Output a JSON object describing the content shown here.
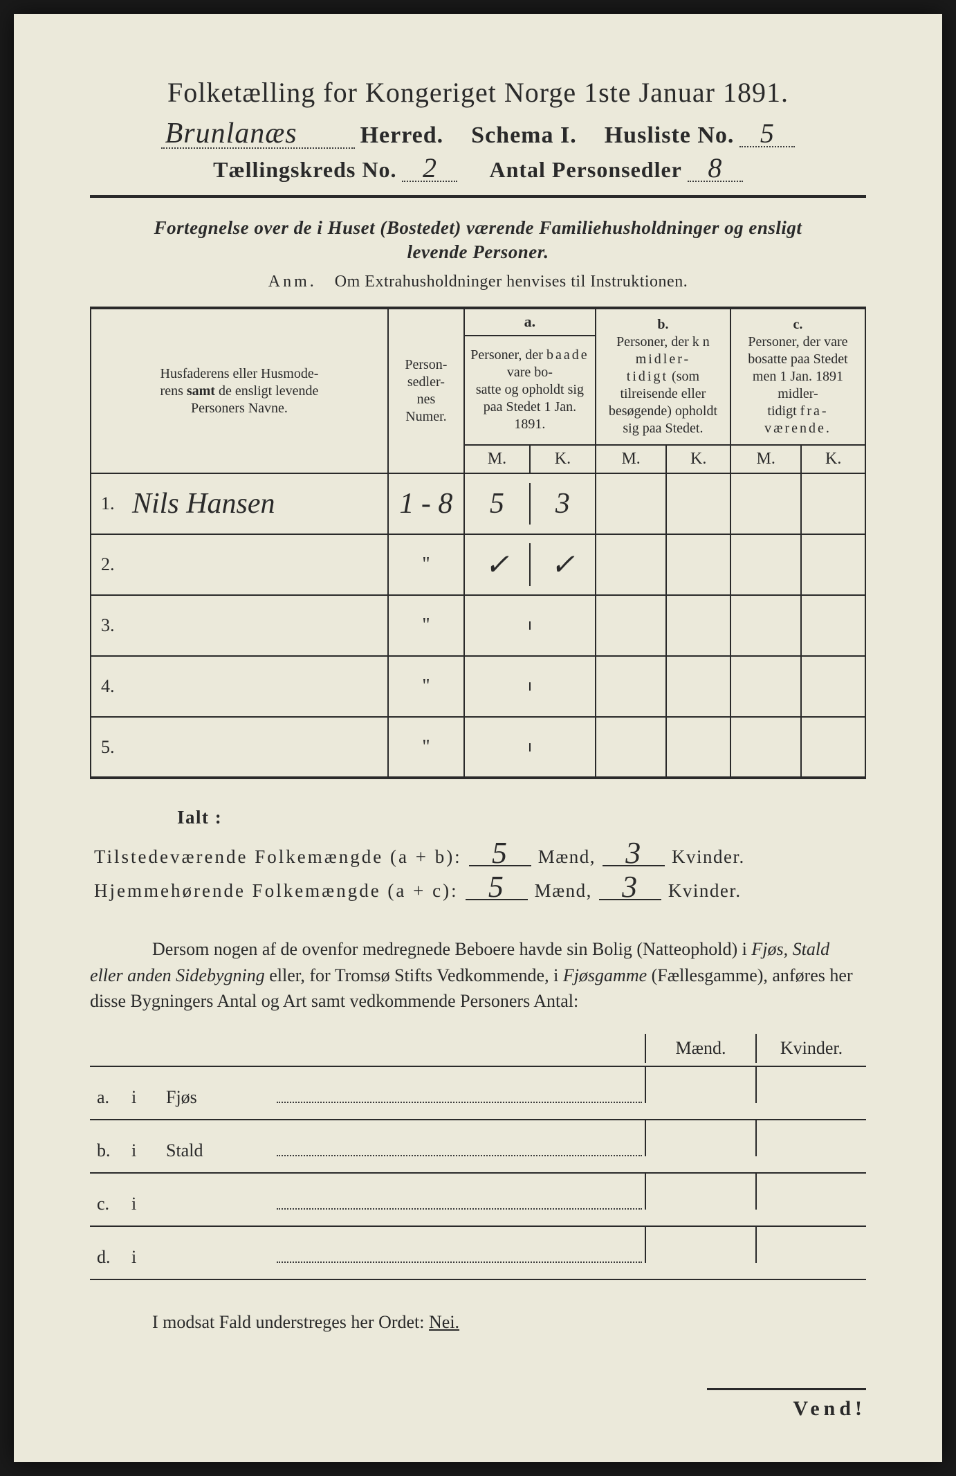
{
  "title": "Folketælling for Kongeriget Norge 1ste Januar 1891.",
  "header": {
    "herred_value": "Brunlanæs",
    "herred_label": "Herred.",
    "schema_label": "Schema I.",
    "husliste_label": "Husliste No.",
    "husliste_value": "5",
    "kreds_label": "Tællingskreds No.",
    "kreds_value": "2",
    "sedler_label": "Antal Personsedler",
    "sedler_value": "8"
  },
  "subtitle_line1": "Fortegnelse over de i Huset (Bostedet) værende Familiehusholdninger og ensligt",
  "subtitle_line2": "levende Personer.",
  "anm_label": "Anm.",
  "anm_text": "Om Extrahusholdninger henvises til Instruktionen.",
  "table": {
    "col_names": {
      "name": "Husfaderens eller Husmoderens samt de ensligt levende Personers Navne.",
      "numer": "Person-\nsedler-\nnes\nNumer.",
      "a_label": "a.",
      "a_text": "Personer, der baade vare bo-\nsatte og opholdt sig paa Stedet 1 Jan. 1891.",
      "b_label": "b.",
      "b_text": "Personer, der kn midler-\ntidigt (som tilreisende eller besøgende) opholdt sig paa Stedet.",
      "c_label": "c.",
      "c_text": "Personer, der vare bosatte paa Stedet men 1 Jan. 1891 midler-\ntidigt fra-\nværende.",
      "M": "M.",
      "K": "K."
    },
    "rows": [
      {
        "n": "1.",
        "name": "Nils Hansen",
        "numer": "1 - 8",
        "aM": "5",
        "aK": "3",
        "bM": "",
        "bK": "",
        "cM": "",
        "cK": ""
      },
      {
        "n": "2.",
        "name": "",
        "numer": "\"",
        "aM": "✓",
        "aK": "✓",
        "bM": "",
        "bK": "",
        "cM": "",
        "cK": ""
      },
      {
        "n": "3.",
        "name": "",
        "numer": "\"",
        "aM": "",
        "aK": "",
        "bM": "",
        "bK": "",
        "cM": "",
        "cK": ""
      },
      {
        "n": "4.",
        "name": "",
        "numer": "\"",
        "aM": "",
        "aK": "",
        "bM": "",
        "bK": "",
        "cM": "",
        "cK": ""
      },
      {
        "n": "5.",
        "name": "",
        "numer": "\"",
        "aM": "",
        "aK": "",
        "bM": "",
        "bK": "",
        "cM": "",
        "cK": ""
      }
    ]
  },
  "totals": {
    "ialt": "Ialt :",
    "tilstede_label": "Tilstedeværende Folkemængde (a + b):",
    "hjemme_label": "Hjemmehørende Folkemængde (a + c):",
    "maend": "Mænd,",
    "kvinder": "Kvinder.",
    "tilstede_m": "5",
    "tilstede_k": "3",
    "hjemme_m": "5",
    "hjemme_k": "3"
  },
  "paragraph": "Dersom nogen af de ovenfor medregnede Beboere havde sin Bolig (Natte­ophold) i Fjøs, Stald eller anden Sidebygning eller, for Tromsø Stifts Ved­kommende, i Fjøsgamme (Fællesgamme), anføres her disse Bygningers Antal og Art samt vedkommende Personers Antal:",
  "mk_header": {
    "m": "Mænd.",
    "k": "Kvinder."
  },
  "abcd": [
    {
      "lab": "a.",
      "i": "i",
      "txt": "Fjøs"
    },
    {
      "lab": "b.",
      "i": "i",
      "txt": "Stald"
    },
    {
      "lab": "c.",
      "i": "i",
      "txt": ""
    },
    {
      "lab": "d.",
      "i": "i",
      "txt": ""
    }
  ],
  "neg_line_pre": "I modsat Fald understreges her Ordet: ",
  "neg_word": "Nei.",
  "vend": "Vend!",
  "colors": {
    "paper": "#ebe9da",
    "ink": "#2a2a2a",
    "border_outer": "#1a1a1a"
  }
}
